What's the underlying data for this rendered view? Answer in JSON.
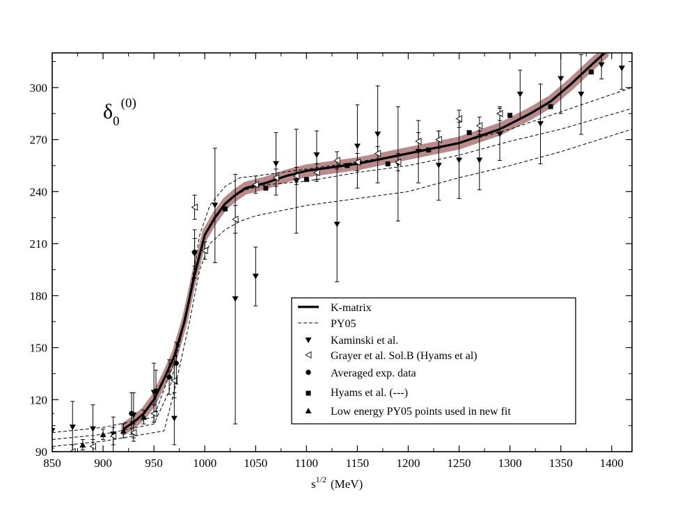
{
  "chart_data": {
    "type": "scatter",
    "title": {
      "main": "δ",
      "sub": "0",
      "sup": "(0)"
    },
    "xlabel": {
      "base": "s",
      "sup": "1/2",
      "unit": "(MeV)"
    },
    "ylabel": "",
    "xlim": [
      850,
      1420
    ],
    "ylim": [
      90,
      320
    ],
    "xticks": [
      850,
      900,
      950,
      1000,
      1050,
      1100,
      1150,
      1200,
      1250,
      1300,
      1350,
      1400
    ],
    "yticks": [
      90,
      120,
      150,
      180,
      210,
      240,
      270,
      300
    ],
    "legend_position": "center-right",
    "legend": [
      {
        "label": "K-matrix",
        "marker": "line-thick"
      },
      {
        "label": "PY05",
        "marker": "line-dashed"
      },
      {
        "label": "Kaminski et al.",
        "marker": "triangle-down"
      },
      {
        "label": "Grayer et al. Sol.B (Hyams et al)",
        "marker": "triangle-left-open"
      },
      {
        "label": "Averaged exp. data",
        "marker": "circle"
      },
      {
        "label": "Hyams et al. (---)",
        "marker": "square"
      },
      {
        "label": "Low energy PY05 points used in new fit",
        "marker": "triangle-up"
      }
    ],
    "series": [
      {
        "name": "K-matrix",
        "style": "thick-line",
        "band": 2.5,
        "x": [
          920,
          930,
          940,
          950,
          960,
          970,
          980,
          990,
          1000,
          1010,
          1020,
          1030,
          1040,
          1060,
          1080,
          1100,
          1150,
          1200,
          1250,
          1290,
          1300,
          1320,
          1340,
          1360,
          1380,
          1395
        ],
        "y": [
          103,
          107,
          112,
          120,
          132,
          145,
          165,
          192,
          215,
          225,
          233,
          238,
          242,
          245,
          249,
          252,
          256,
          262,
          268,
          276,
          279,
          285,
          292,
          302,
          313,
          321
        ]
      },
      {
        "name": "PY05 upper",
        "style": "dashed",
        "x": [
          850,
          900,
          950,
          970,
          985,
          995,
          1005,
          1020,
          1035,
          1050,
          1100,
          1150,
          1200,
          1250,
          1300,
          1350,
          1420
        ],
        "y": [
          101,
          104,
          110,
          142,
          180,
          215,
          232,
          243,
          248,
          249,
          253,
          257,
          262,
          268,
          276,
          286,
          300
        ]
      },
      {
        "name": "PY05 central",
        "style": "dashed",
        "x": [
          850,
          900,
          950,
          965,
          980,
          990,
          1000,
          1010,
          1025,
          1040,
          1060,
          1100,
          1150,
          1200,
          1250,
          1300,
          1350,
          1420
        ],
        "y": [
          97,
          100,
          106,
          125,
          165,
          195,
          215,
          226,
          236,
          241,
          244,
          246,
          251,
          255,
          261,
          269,
          276,
          288
        ]
      },
      {
        "name": "PY05 lower",
        "style": "dashed",
        "x": [
          850,
          900,
          960,
          970,
          985,
          995,
          1005,
          1020,
          1035,
          1050,
          1100,
          1150,
          1200,
          1250,
          1300,
          1350,
          1420
        ],
        "y": [
          93,
          96,
          102,
          125,
          165,
          195,
          210,
          218,
          223,
          226,
          232,
          236,
          240,
          248,
          255,
          263,
          276
        ]
      },
      {
        "name": "Kaminski et al.",
        "marker": "triangle-down",
        "x": [
          850,
          870,
          890,
          910,
          930,
          950,
          970,
          990,
          1010,
          1030,
          1050,
          1070,
          1090,
          1110,
          1130,
          1150,
          1170,
          1190,
          1210,
          1230,
          1250,
          1270,
          1290,
          1310,
          1330,
          1350,
          1370,
          1390,
          1410
        ],
        "y": [
          102,
          104,
          103,
          100,
          111,
          124,
          109,
          204,
          232,
          178,
          191,
          256,
          246,
          261,
          221,
          266,
          273,
          256,
          263,
          255,
          258,
          258,
          273,
          296,
          279,
          305,
          296,
          313,
          311
        ],
        "err": [
          10,
          15,
          14,
          10,
          13,
          17,
          15,
          14,
          33,
          72,
          17,
          18,
          30,
          14,
          33,
          24,
          28,
          33,
          18,
          20,
          22,
          17,
          15,
          14,
          23,
          20,
          23,
          8,
          12
        ]
      },
      {
        "name": "Grayer et al. Sol.B (Hyams et al)",
        "marker": "triangle-left-open",
        "x": [
          870,
          890,
          910,
          930,
          950,
          970,
          990,
          1000,
          1030,
          1050,
          1070,
          1090,
          1110,
          1130,
          1150,
          1170,
          1190,
          1210,
          1230,
          1250,
          1270,
          1290
        ],
        "y": [
          90,
          93,
          99,
          101,
          112,
          131,
          231,
          206,
          224,
          244,
          248,
          249,
          251,
          258,
          257,
          262,
          257,
          269,
          270,
          282,
          278,
          285
        ],
        "err": [
          4,
          4,
          5,
          5,
          5,
          10,
          7,
          5,
          8,
          5,
          5,
          5,
          5,
          5,
          5,
          4,
          5,
          5,
          5,
          5,
          5,
          4
        ]
      },
      {
        "name": "Averaged exp. data",
        "marker": "circle",
        "x": [
          928,
          952,
          965,
          972,
          990
        ],
        "y": [
          112,
          125,
          133,
          141,
          205
        ],
        "err": [
          12,
          12,
          10,
          12,
          8
        ]
      },
      {
        "name": "Hyams et al. (---)",
        "marker": "square",
        "x": [
          1020,
          1060,
          1100,
          1140,
          1180,
          1220,
          1260,
          1300,
          1340,
          1380
        ],
        "y": [
          230,
          242,
          247,
          255,
          256,
          264,
          274,
          284,
          289,
          309
        ]
      },
      {
        "name": "Low energy PY05 points used in new fit",
        "marker": "triangle-up",
        "x": [
          880,
          900,
          920,
          940
        ],
        "y": [
          94,
          100,
          102,
          110
        ],
        "err": [
          3,
          3,
          4,
          4
        ]
      }
    ]
  }
}
